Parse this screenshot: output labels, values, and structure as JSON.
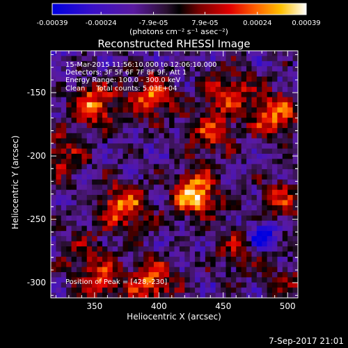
{
  "colorbar": {
    "ticks": [
      "-0.00039",
      "-0.00024",
      "-7.9e-05",
      "7.9e-05",
      "0.00024",
      "0.00039"
    ],
    "tick_values": [
      -0.00039,
      -0.00024,
      -7.9e-05,
      7.9e-05,
      0.00024,
      0.00039
    ],
    "units_label": "(photons cm⁻² s⁻¹ asec⁻²)",
    "range": [
      -0.00039,
      0.00039
    ]
  },
  "chart_data": {
    "type": "heatmap",
    "title": "Reconstructed RHESSI Image",
    "xlabel": "Heliocentric X (arcsec)",
    "ylabel": "Heliocentric Y (arcsec)",
    "xlim": [
      316,
      508
    ],
    "ylim": [
      -312,
      -117
    ],
    "x_ticks": [
      350,
      400,
      450,
      500
    ],
    "y_ticks": [
      -150,
      -200,
      -250,
      -300
    ],
    "x_tick_labels": [
      "350",
      "400",
      "450",
      "500"
    ],
    "y_tick_labels": [
      "-150",
      "-200",
      "-250",
      "-300"
    ],
    "colormap": "rainbow-blue-purple-red-yellow-white",
    "annotations": [
      "15-Mar-2015 11:56:10.000 to 12:06:10.000",
      "Detectors: 3F 5F 6F 7F 8F 9F, Att 1",
      "Energy Range: 100.0 - 300.0 keV",
      "Clean     Total counts: 5.03E+04",
      "Position of Peak = [428,-230]"
    ],
    "peak": {
      "x": 428,
      "y": -230
    },
    "sources": [
      {
        "x": 428,
        "y": -230,
        "rel": 1.0
      },
      {
        "x": 372,
        "y": -240,
        "rel": 0.82
      },
      {
        "x": 350,
        "y": -160,
        "rel": 0.78
      },
      {
        "x": 395,
        "y": -152,
        "rel": 0.72
      },
      {
        "x": 490,
        "y": -168,
        "rel": 0.75
      },
      {
        "x": 455,
        "y": -150,
        "rel": 0.62
      },
      {
        "x": 440,
        "y": -182,
        "rel": 0.55
      },
      {
        "x": 395,
        "y": -300,
        "rel": 0.72
      },
      {
        "x": 355,
        "y": -300,
        "rel": 0.55
      },
      {
        "x": 495,
        "y": -235,
        "rel": 0.48
      },
      {
        "x": 325,
        "y": -200,
        "rel": 0.5
      },
      {
        "x": 500,
        "y": -300,
        "rel": 0.38
      },
      {
        "x": 462,
        "y": -274,
        "rel": 0.42
      },
      {
        "x": 340,
        "y": -276,
        "rel": 0.35
      }
    ],
    "minimum": {
      "x": 480,
      "y": -262
    }
  },
  "timestamp": "7-Sep-2017 21:01"
}
